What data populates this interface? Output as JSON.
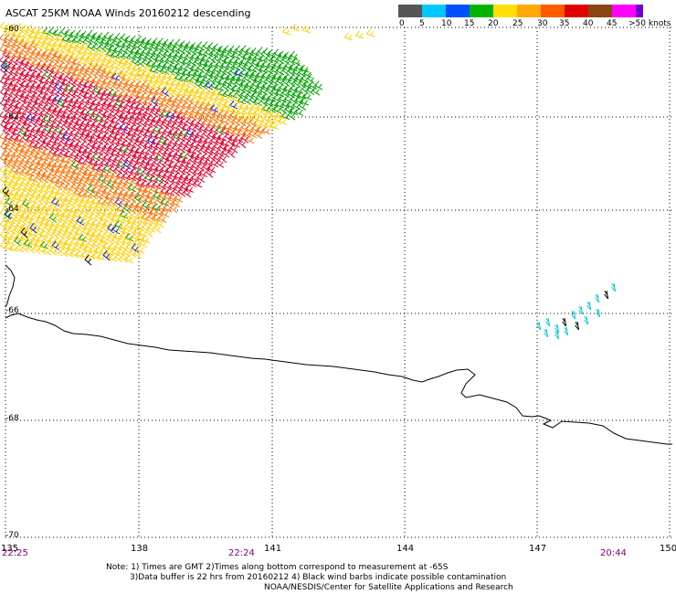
{
  "title": "ASCAT 25KM NOAA Winds 20160212 descending",
  "lat_labels": [
    "-60",
    "-62",
    "-64",
    "-66",
    "-68",
    "-70"
  ],
  "lon_labels": [
    "135",
    "138",
    "141",
    "144",
    "147",
    "150"
  ],
  "times": [
    "22:25",
    "22:24",
    "20:44"
  ],
  "notes": [
    "Note: 1) Times are GMT 2)Times along bottom correspond to measurement at -65S",
    "3)Data buffer is 22 hrs from 20160212 4) Black wind barbs indicate possible contamination",
    "NOAA/NESDIS/Center for Satellite Applications and Research"
  ],
  "legend": {
    "labels": [
      "0",
      "5",
      "10",
      "15",
      "20",
      "25",
      "30",
      "35",
      "40",
      "45",
      ">50 knots"
    ],
    "colors": [
      "#555555",
      "#00c8ff",
      "#0050ff",
      "#00b400",
      "#ffe000",
      "#ffa800",
      "#ff5a00",
      "#e00000",
      "#8b4513",
      "#ff00ff",
      "#7000d0"
    ]
  },
  "colors": {
    "grid": "#000000",
    "coast": "#000000",
    "time": "#800080",
    "green": "#00a000",
    "yellow": "#ffd000",
    "orange": "#ff7000",
    "red": "#e00030",
    "cyan": "#00c8e0",
    "blue": "#0020e0",
    "black": "#000000"
  }
}
